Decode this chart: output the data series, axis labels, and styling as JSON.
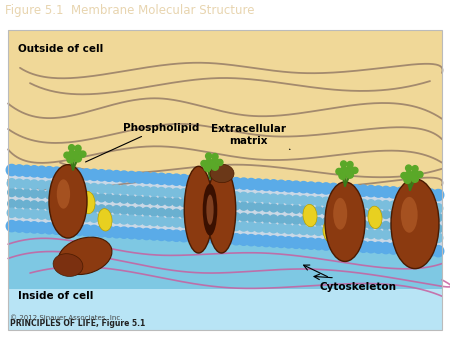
{
  "title": "Figure 5.1  Membrane Molecular Structure",
  "title_bg": "#6B4423",
  "title_fg": "#E8D5B0",
  "outside_label": "Outside of cell",
  "inside_label": "Inside of cell",
  "phospholipid_label": "Phospholipid",
  "extracellular_label": "Extracellular\nmatrix",
  "cytoskeleton_label": "Cytoskeleton",
  "copyright_line1": "PRINCIPLES OF LIFE, Figure 5.1",
  "copyright_line2": "© 2012 Sinauer Associates, Inc.",
  "bg_outside": "#F0D898",
  "bg_inside_top": "#7EC8E3",
  "bg_inside_bot": "#B8E4F5",
  "membrane_color": "#D8E8F0",
  "bead_color": "#5AABE8",
  "bead_color2": "#7ABEDD",
  "protein_fill": "#8B3A10",
  "protein_edge": "#4A1A00",
  "protein_light": "#C06830",
  "yellow_color": "#E8D020",
  "yellow_edge": "#B8A000",
  "green_color": "#3A7A18",
  "fiber_color": "#8A7060",
  "cyto_color": "#C860A0",
  "tail_color": "#D0D8E0",
  "label_fontsize": 7.5,
  "title_fontsize": 8.5,
  "fig_width": 4.5,
  "fig_height": 3.38
}
